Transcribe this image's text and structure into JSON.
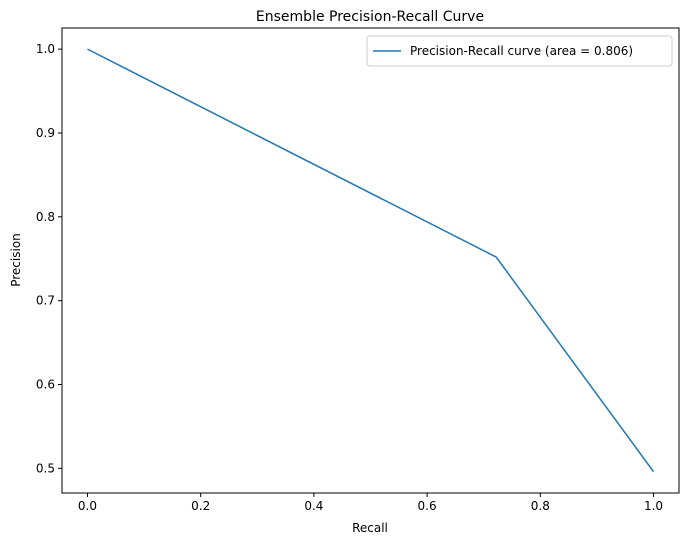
{
  "chart_data": {
    "type": "line",
    "title": "Ensemble Precision-Recall Curve",
    "xlabel": "Recall",
    "ylabel": "Precision",
    "xlim": [
      -0.045,
      1.045
    ],
    "ylim": [
      0.4706,
      1.0252
    ],
    "xticks": [
      "0.0",
      "0.2",
      "0.4",
      "0.6",
      "0.8",
      "1.0"
    ],
    "yticks": [
      "0.5",
      "0.6",
      "0.7",
      "0.8",
      "0.9",
      "1.0"
    ],
    "grid": false,
    "legend_position": "top-right",
    "series": [
      {
        "name": "Precision-Recall curve (area = 0.806)",
        "color": "#1f77b4",
        "x": [
          0.0,
          0.722,
          1.0
        ],
        "y": [
          1.0,
          0.752,
          0.496
        ]
      }
    ]
  }
}
